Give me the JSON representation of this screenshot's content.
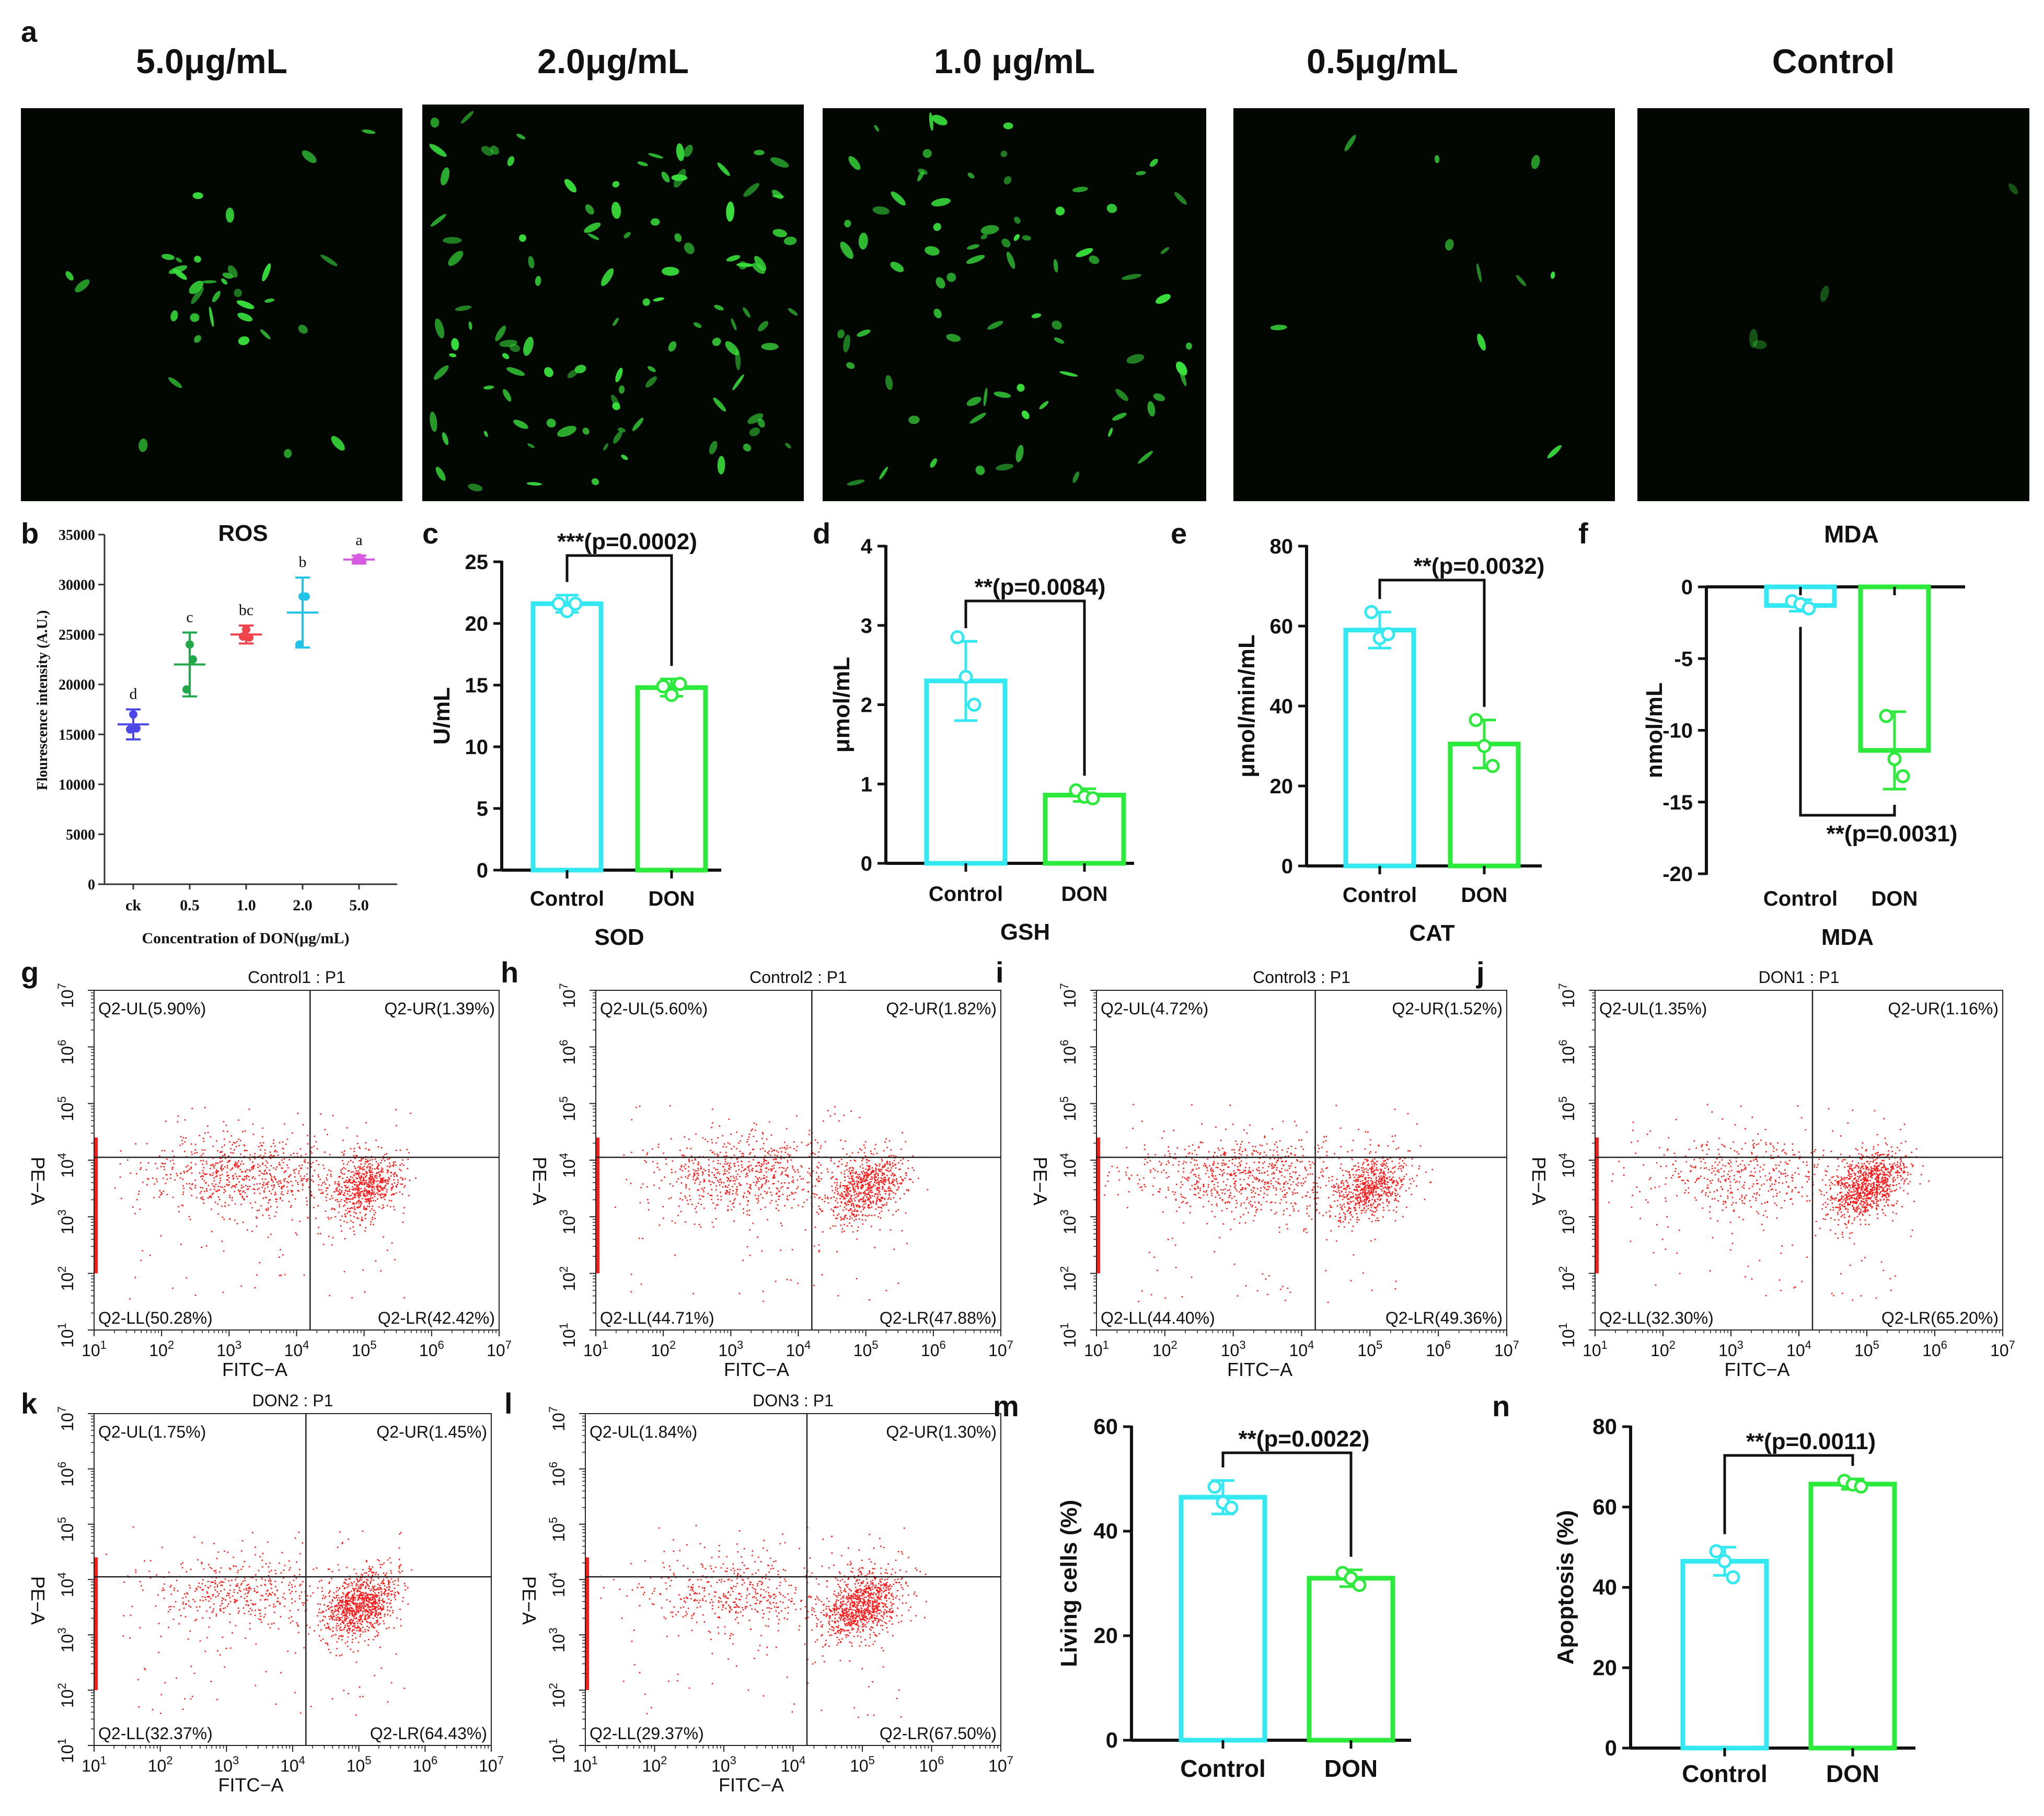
{
  "figure": {
    "panel_a": {
      "letter": "a",
      "images": [
        {
          "label": "5.0μg/mL"
        },
        {
          "label": "2.0μg/mL"
        },
        {
          "label": "1.0 μg/mL"
        },
        {
          "label": "0.5μg/mL"
        },
        {
          "label": "Control"
        }
      ]
    }
  },
  "colors": {
    "control": "#33E8F0",
    "don": "#2BEA3B",
    "flow_dots": "#FF1A1A",
    "micro_bg": "#020702",
    "micro_cell": "#39E03C"
  },
  "chart_data": [
    {
      "id": "b",
      "letter": "b",
      "type": "scatter",
      "title": "ROS",
      "categories": [
        "ck",
        "0.5",
        "1.0",
        "2.0",
        "5.0"
      ],
      "means": [
        16000,
        22000,
        25000,
        27200,
        32500
      ],
      "sd": [
        1500,
        3200,
        900,
        3500,
        400
      ],
      "points": [
        [
          15500,
          17000,
          15600
        ],
        [
          19500,
          24000,
          22500
        ],
        [
          24800,
          25500,
          24700
        ],
        [
          24000,
          28800,
          28800
        ],
        [
          32400,
          32700,
          32400
        ]
      ],
      "letters": [
        "d",
        "c",
        "bc",
        "b",
        "a"
      ],
      "series_colors": [
        "#4B47E8",
        "#21A84A",
        "#F0444B",
        "#22C3E8",
        "#D65BE0"
      ],
      "ylabel": "Flourescence intensity (A.U.)",
      "xlabel": "Concentration of DON(μg/mL)",
      "ylim": [
        0,
        35000
      ],
      "yticks": [
        0,
        5000,
        10000,
        15000,
        20000,
        25000,
        30000,
        35000
      ]
    },
    {
      "id": "c",
      "letter": "c",
      "type": "bar",
      "categories": [
        "Control",
        "DON"
      ],
      "values": [
        21.6,
        14.8
      ],
      "sd": [
        0.7,
        0.7
      ],
      "points": [
        [
          21.6,
          21.0,
          21.6
        ],
        [
          14.9,
          14.2,
          15.1
        ]
      ],
      "ylabel": "U/mL",
      "xlabel": "SOD",
      "ylim": [
        0,
        25
      ],
      "yticks": [
        0,
        5,
        10,
        15,
        20,
        25
      ],
      "annotation": "***(p=0.0002)"
    },
    {
      "id": "d",
      "letter": "d",
      "type": "bar",
      "categories": [
        "Control",
        "DON"
      ],
      "values": [
        2.3,
        0.86
      ],
      "sd": [
        0.5,
        0.08
      ],
      "points": [
        [
          2.85,
          2.35,
          2.0
        ],
        [
          0.92,
          0.84,
          0.82
        ]
      ],
      "ylabel": "μmol/mL",
      "xlabel": "GSH",
      "ylim": [
        0,
        4
      ],
      "yticks": [
        0,
        1,
        2,
        3,
        4
      ],
      "annotation": "**(p=0.0084)"
    },
    {
      "id": "e",
      "letter": "e",
      "type": "bar",
      "categories": [
        "Control",
        "DON"
      ],
      "values": [
        59,
        30.5
      ],
      "sd": [
        4.5,
        6
      ],
      "points": [
        [
          63.5,
          57,
          58
        ],
        [
          36.5,
          30,
          25
        ]
      ],
      "ylabel": "μmol/min/mL",
      "xlabel": "CAT",
      "ylim": [
        0,
        80
      ],
      "yticks": [
        0,
        20,
        40,
        60,
        80
      ],
      "annotation": "**(p=0.0032)"
    },
    {
      "id": "f",
      "letter": "f",
      "type": "bar",
      "title": "MDA",
      "categories": [
        "Control",
        "DON"
      ],
      "values": [
        -1.3,
        -11.4
      ],
      "sd": [
        0.4,
        2.7
      ],
      "points": [
        [
          -1.0,
          -1.2,
          -1.5
        ],
        [
          -9.0,
          -12.0,
          -13.2
        ]
      ],
      "ylabel": "nmol/mL",
      "xlabel": "MDA",
      "ylim": [
        -20,
        0
      ],
      "yticks": [
        -20,
        -15,
        -10,
        -5,
        0
      ],
      "annotation": "**(p=0.0031)"
    },
    {
      "id": "m",
      "letter": "m",
      "type": "bar",
      "categories": [
        "Control",
        "DON"
      ],
      "values": [
        46.5,
        31
      ],
      "sd": [
        3.2,
        1.6
      ],
      "points": [
        [
          48.5,
          45.5,
          44.5
        ],
        [
          32,
          31,
          29.7
        ]
      ],
      "ylabel": "Living cells (%)",
      "xlabel": "",
      "ylim": [
        0,
        60
      ],
      "yticks": [
        0,
        20,
        40,
        60
      ],
      "annotation": "**(p=0.0022)"
    },
    {
      "id": "n",
      "letter": "n",
      "type": "bar",
      "categories": [
        "Control",
        "DON"
      ],
      "values": [
        46.5,
        65.7
      ],
      "sd": [
        3.5,
        1.3
      ],
      "points": [
        [
          49,
          46.5,
          42.5
        ],
        [
          66.5,
          65.6,
          65.1
        ]
      ],
      "ylabel": "Apoptosis (%)",
      "xlabel": "",
      "ylim": [
        0,
        80
      ],
      "yticks": [
        0,
        20,
        40,
        60,
        80
      ],
      "annotation": "**(p=0.0011)"
    },
    {
      "id": "g",
      "letter": "g",
      "type": "scatter",
      "subtype": "flow-cytometry",
      "title": "Control1 : P1",
      "xlabel": "FITC−A",
      "ylabel": "PE−A",
      "quadrants": {
        "UL": "Q2-UL(5.90%)",
        "UR": "Q2-UR(1.39%)",
        "LL": "Q2-LL(50.28%)",
        "LR": "Q2-LR(42.42%)"
      },
      "gate": {
        "x_log": 4.2,
        "y_log": 4.05
      },
      "xlim_log": [
        1,
        7
      ],
      "ylim_log": [
        1,
        7
      ],
      "xticks_exp": [
        "1",
        "2",
        "3",
        "4",
        "5",
        "6",
        "7"
      ],
      "yticks_exp": [
        "1",
        "2",
        "3",
        "4",
        "5",
        "6",
        "7"
      ]
    },
    {
      "id": "h",
      "letter": "h",
      "type": "scatter",
      "subtype": "flow-cytometry",
      "title": "Control2 : P1",
      "xlabel": "FITC−A",
      "ylabel": "PE−A",
      "quadrants": {
        "UL": "Q2-UL(5.60%)",
        "UR": "Q2-UR(1.82%)",
        "LL": "Q2-LL(44.71%)",
        "LR": "Q2-LR(47.88%)"
      },
      "gate": {
        "x_log": 4.2,
        "y_log": 4.05
      },
      "xlim_log": [
        1,
        7
      ],
      "ylim_log": [
        1,
        7
      ],
      "xticks_exp": [
        "1",
        "2",
        "3",
        "4",
        "5",
        "6",
        "7"
      ],
      "yticks_exp": [
        "1",
        "2",
        "3",
        "4",
        "5",
        "6",
        "7"
      ]
    },
    {
      "id": "i",
      "letter": "i",
      "type": "scatter",
      "subtype": "flow-cytometry",
      "title": "Control3 : P1",
      "xlabel": "FITC−A",
      "ylabel": "PE−A",
      "quadrants": {
        "UL": "Q2-UL(4.72%)",
        "UR": "Q2-UR(1.52%)",
        "LL": "Q2-LL(44.40%)",
        "LR": "Q2-LR(49.36%)"
      },
      "gate": {
        "x_log": 4.2,
        "y_log": 4.05
      },
      "xlim_log": [
        1,
        7
      ],
      "ylim_log": [
        1,
        7
      ],
      "xticks_exp": [
        "1",
        "2",
        "3",
        "4",
        "5",
        "6",
        "7"
      ],
      "yticks_exp": [
        "1",
        "2",
        "3",
        "4",
        "5",
        "6",
        "7"
      ]
    },
    {
      "id": "j",
      "letter": "j",
      "type": "scatter",
      "subtype": "flow-cytometry",
      "title": "DON1 : P1",
      "xlabel": "FITC−A",
      "ylabel": "PE−A",
      "quadrants": {
        "UL": "Q2-UL(1.35%)",
        "UR": "Q2-UR(1.16%)",
        "LL": "Q2-LL(32.30%)",
        "LR": "Q2-LR(65.20%)"
      },
      "gate": {
        "x_log": 4.2,
        "y_log": 4.05
      },
      "xlim_log": [
        1,
        7
      ],
      "ylim_log": [
        1,
        7
      ],
      "xticks_exp": [
        "1",
        "2",
        "3",
        "4",
        "5",
        "6",
        "7"
      ],
      "yticks_exp": [
        "1",
        "2",
        "3",
        "4",
        "5",
        "6",
        "7"
      ]
    },
    {
      "id": "k",
      "letter": "k",
      "type": "scatter",
      "subtype": "flow-cytometry",
      "title": "DON2 : P1",
      "xlabel": "FITC−A",
      "ylabel": "PE−A",
      "quadrants": {
        "UL": "Q2-UL(1.75%)",
        "UR": "Q2-UR(1.45%)",
        "LL": "Q2-LL(32.37%)",
        "LR": "Q2-LR(64.43%)"
      },
      "gate": {
        "x_log": 4.2,
        "y_log": 4.05
      },
      "xlim_log": [
        1,
        7
      ],
      "ylim_log": [
        1,
        7
      ],
      "xticks_exp": [
        "1",
        "2",
        "3",
        "4",
        "5",
        "6",
        "7"
      ],
      "yticks_exp": [
        "1",
        "2",
        "3",
        "4",
        "5",
        "6",
        "7"
      ]
    },
    {
      "id": "l",
      "letter": "l",
      "type": "scatter",
      "subtype": "flow-cytometry",
      "title": "DON3 : P1",
      "xlabel": "FITC−A",
      "ylabel": "PE−A",
      "quadrants": {
        "UL": "Q2-UL(1.84%)",
        "UR": "Q2-UR(1.30%)",
        "LL": "Q2-LL(29.37%)",
        "LR": "Q2-LR(67.50%)"
      },
      "gate": {
        "x_log": 4.2,
        "y_log": 4.05
      },
      "xlim_log": [
        1,
        7
      ],
      "ylim_log": [
        1,
        7
      ],
      "xticks_exp": [
        "1",
        "2",
        "3",
        "4",
        "5",
        "6",
        "7"
      ],
      "yticks_exp": [
        "1",
        "2",
        "3",
        "4",
        "5",
        "6",
        "7"
      ]
    }
  ]
}
